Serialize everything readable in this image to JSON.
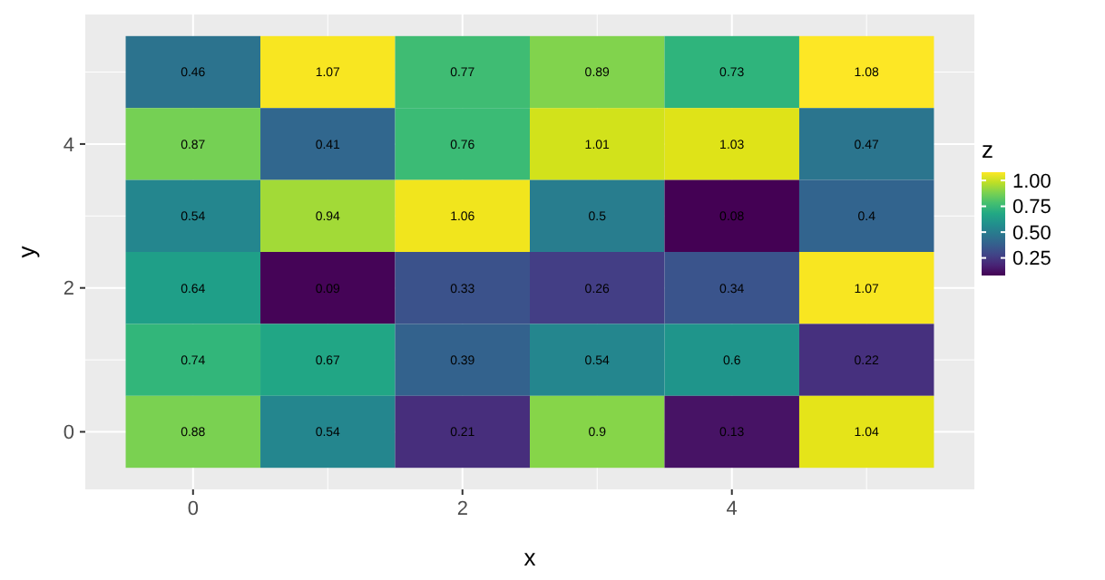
{
  "chart_data": {
    "type": "heatmap",
    "xlabel": "x",
    "ylabel": "y",
    "legend_title": "z",
    "categories": [
      "0",
      null,
      "2",
      null,
      "4",
      null
    ],
    "y_categories": [
      null,
      "4",
      null,
      "2",
      null,
      "0"
    ],
    "cells": [
      [
        0.46,
        1.07,
        0.77,
        0.89,
        0.73,
        1.08
      ],
      [
        0.87,
        0.41,
        0.76,
        1.01,
        1.03,
        0.47
      ],
      [
        0.54,
        0.94,
        1.06,
        0.5,
        0.08,
        0.4
      ],
      [
        0.64,
        0.09,
        0.33,
        0.26,
        0.34,
        1.07
      ],
      [
        0.74,
        0.67,
        0.39,
        0.54,
        0.6,
        0.22
      ],
      [
        0.88,
        0.54,
        0.21,
        0.9,
        0.13,
        1.04
      ]
    ],
    "clim": [
      0.08,
      1.08
    ],
    "cticks": [
      {
        "value": 0.25,
        "label": "0.25"
      },
      {
        "value": 0.5,
        "label": "0.50"
      },
      {
        "value": 0.75,
        "label": "0.75"
      },
      {
        "value": 1,
        "label": "1.00"
      }
    ],
    "data_labels": true,
    "grid": true
  }
}
